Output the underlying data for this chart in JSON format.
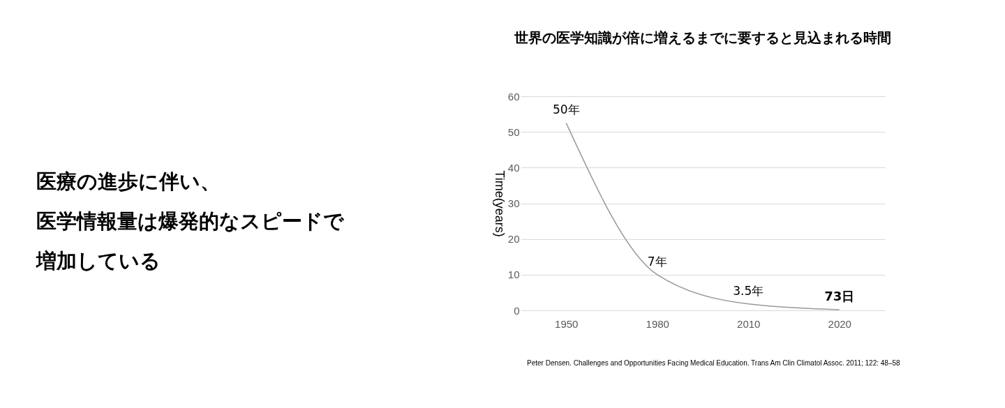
{
  "chart_data": {
    "type": "line",
    "title": "世界の医学知識が倍に増えるまでに要すると見込まれる時間",
    "ylabel": "Time(years)",
    "categories": [
      "1950",
      "1980",
      "2010",
      "2020"
    ],
    "series": [
      {
        "color": "#999999",
        "values": [
          52.5,
          10,
          1.8,
          0.2
        ]
      }
    ],
    "ylim": [
      0,
      60
    ],
    "yticks": [
      0,
      10,
      20,
      30,
      40,
      50,
      60
    ],
    "grid": "y",
    "marker": "none",
    "line_style": "solid",
    "annotations": [
      "医療の進歩に伴い、",
      "医学情報量は爆発的なスピードで",
      "増加している",
      {
        "text": "50年",
        "x": "1950",
        "y": 52.5
      },
      {
        "text": "7年",
        "x": "1980",
        "y": 10
      },
      {
        "text": "3.5年",
        "x": "2010",
        "y": 1.8
      },
      {
        "text": "73日",
        "x": "2020",
        "y": 0.2
      },
      "Peter Densen. Challenges and Opportunities Facing Medical Education. Trans Am Clin Climatol Assoc. 2011; 122: 48–58"
    ]
  }
}
